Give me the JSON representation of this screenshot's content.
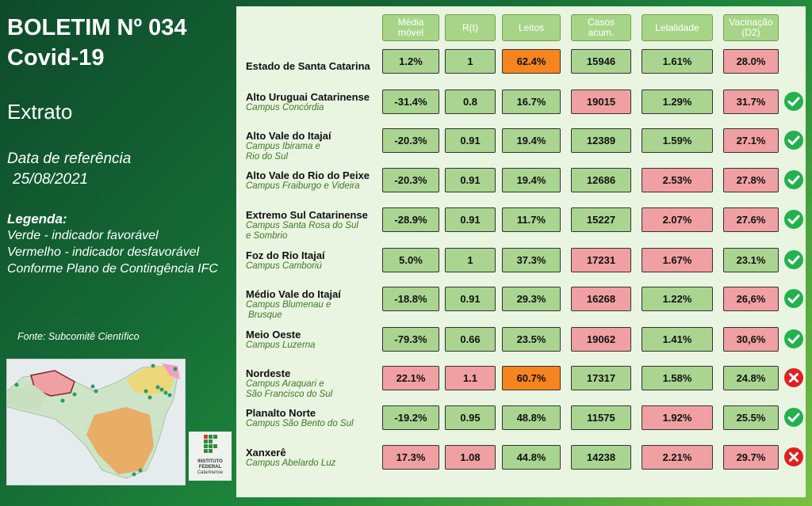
{
  "title": {
    "line1": "BOLETIM Nº 034",
    "line2": "Covid-19"
  },
  "subtitle": "Extrato",
  "reference": {
    "label": "Data de referência",
    "date": "25/08/2021"
  },
  "legend": {
    "title": "Legenda:",
    "green": "Verde - indicador favorável",
    "red": "Vermelho - indicador desfavorável",
    "plan": "Conforme Plano de Contingência IFC"
  },
  "source": "Fonte: Subcomitê Científico",
  "logo": {
    "name": "INSTITUTO",
    "name2": "FEDERAL",
    "name3": "Catarinense"
  },
  "columns": [
    {
      "l1": "Média",
      "l2": "móvel"
    },
    {
      "l1": "R(t)",
      "l2": ""
    },
    {
      "l1": "Leitos",
      "l2": ""
    },
    {
      "l1": "Casos",
      "l2": "acum."
    },
    {
      "l1": "Letalidade",
      "l2": ""
    },
    {
      "l1": "Vacinação",
      "l2": "(D2)"
    }
  ],
  "colors": {
    "green": "#a9d591",
    "red": "#f0a0a2",
    "orange": "#f6841f",
    "check": "#22b14c",
    "cross": "#e02020"
  },
  "rows": [
    {
      "title": "Estado de Santa Catarina",
      "campus1": "",
      "campus2": "",
      "values": [
        "1.2%",
        "1",
        "62.4%",
        "15946",
        "1.61%",
        "28.0%"
      ],
      "status": [
        "g",
        "g",
        "o",
        "g",
        "g",
        "r"
      ],
      "icon": ""
    },
    {
      "title": "Alto Uruguai Catarinense",
      "campus1": "Campus Concórdia",
      "campus2": "",
      "values": [
        "-31.4%",
        "0.8",
        "16.7%",
        "19015",
        "1.29%",
        "31.7%"
      ],
      "status": [
        "g",
        "g",
        "g",
        "r",
        "g",
        "r"
      ],
      "icon": "check"
    },
    {
      "title": "Alto Vale do Itajaí",
      "campus1": "Campus Ibirama e",
      "campus2": "Rio do Sul",
      "values": [
        "-20.3%",
        "0.91",
        "19.4%",
        "12389",
        "1.59%",
        "27.1%"
      ],
      "status": [
        "g",
        "g",
        "g",
        "g",
        "g",
        "r"
      ],
      "icon": "check"
    },
    {
      "title": "Alto Vale do Rio do Peixe",
      "campus1": "Campus Fraiburgo e Videira",
      "campus2": "",
      "values": [
        "-20.3%",
        "0.91",
        "19.4%",
        "12686",
        "2.53%",
        "27.8%"
      ],
      "status": [
        "g",
        "g",
        "g",
        "g",
        "r",
        "r"
      ],
      "icon": "check"
    },
    {
      "title": "Extremo Sul Catarinense",
      "campus1": "Campus Santa Rosa do Sul",
      "campus2": "e Sombrio",
      "values": [
        "-28.9%",
        "0.91",
        "11.7%",
        "15227",
        "2.07%",
        "27.6%"
      ],
      "status": [
        "g",
        "g",
        "g",
        "g",
        "r",
        "r"
      ],
      "icon": "check"
    },
    {
      "title": "Foz do Rio Itajaí",
      "campus1": "Campus Camboriú",
      "campus2": "",
      "values": [
        "5.0%",
        "1",
        "37.3%",
        "17231",
        "1.67%",
        "23.1%"
      ],
      "status": [
        "g",
        "g",
        "g",
        "r",
        "r",
        "g"
      ],
      "icon": "check"
    },
    {
      "title": "Médio Vale do Itajaí",
      "campus1": "Campus Blumenau e",
      "campus2": "Brusque",
      "values": [
        "-18.8%",
        "0.91",
        "29.3%",
        "16268",
        "1.22%",
        "26,6%"
      ],
      "status": [
        "g",
        "g",
        "g",
        "r",
        "g",
        "r"
      ],
      "icon": "check"
    },
    {
      "title": "Meio Oeste",
      "campus1": "Campus Luzerna",
      "campus2": "",
      "values": [
        "-79.3%",
        "0.66",
        "23.5%",
        "19062",
        "1.41%",
        "30,6%"
      ],
      "status": [
        "g",
        "g",
        "g",
        "r",
        "g",
        "r"
      ],
      "icon": "check"
    },
    {
      "title": "Nordeste",
      "campus1": "Campus Araquari e",
      "campus2": "São Francisco do Sul",
      "values": [
        "22.1%",
        "1.1",
        "60.7%",
        "17317",
        "1.58%",
        "24.8%"
      ],
      "status": [
        "r",
        "r",
        "o",
        "g",
        "g",
        "g"
      ],
      "icon": "cross"
    },
    {
      "title": "Planalto Norte",
      "campus1": "Campus São Bento do Sul",
      "campus2": "",
      "values": [
        "-19.2%",
        "0.95",
        "48.8%",
        "11575",
        "1.92%",
        "25.5%"
      ],
      "status": [
        "g",
        "g",
        "g",
        "g",
        "r",
        "g"
      ],
      "icon": "check"
    },
    {
      "title": "Xanxerê",
      "campus1": "Campus Abelardo Luz",
      "campus2": "",
      "values": [
        "17.3%",
        "1.08",
        "44.8%",
        "14238",
        "2.21%",
        "29.7%"
      ],
      "status": [
        "r",
        "r",
        "g",
        "g",
        "r",
        "r"
      ],
      "icon": "cross"
    }
  ]
}
